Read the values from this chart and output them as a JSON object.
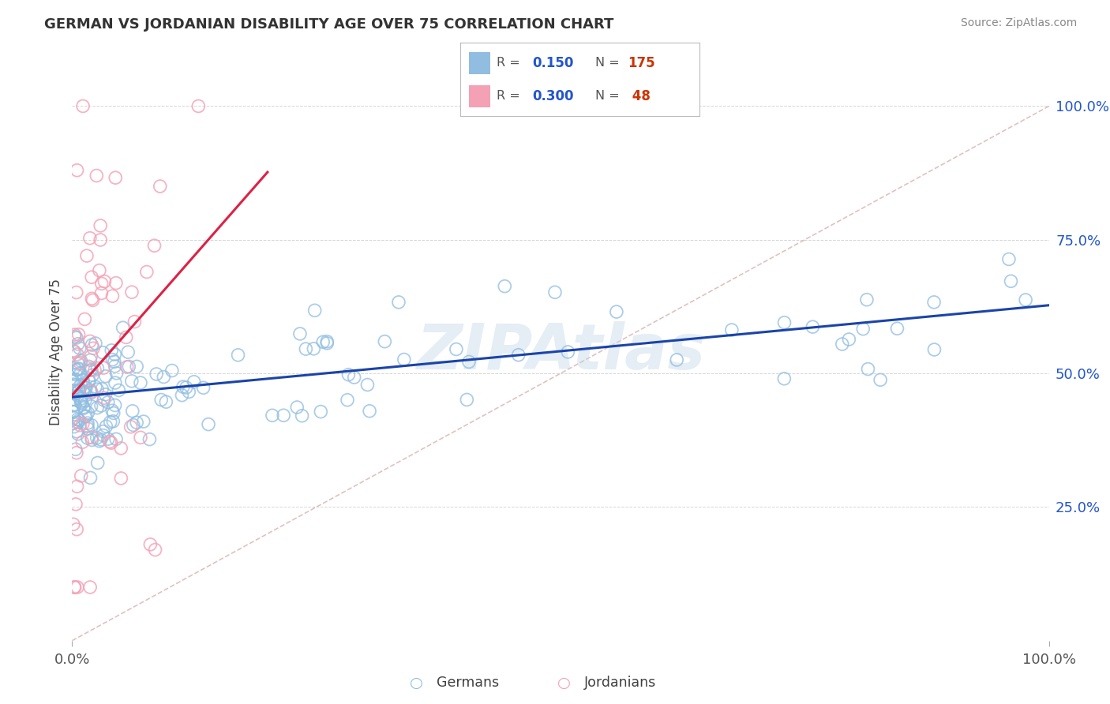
{
  "title": "GERMAN VS JORDANIAN DISABILITY AGE OVER 75 CORRELATION CHART",
  "source": "Source: ZipAtlas.com",
  "ylabel": "Disability Age Over 75",
  "german_color": "#90bde0",
  "jordanian_color": "#f4a0b5",
  "german_line_color": "#1a44aa",
  "jordanian_line_color": "#dd2244",
  "watermark": "ZIPAtlas",
  "background_color": "#ffffff",
  "grid_color": "#cccccc",
  "title_color": "#333333",
  "source_color": "#888888",
  "diag_color": "#ddbbbb",
  "right_tick_color": "#2255cc",
  "seed": 99
}
